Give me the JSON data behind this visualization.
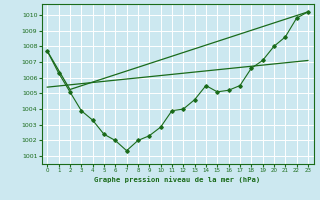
{
  "title": "Graphe pression niveau de la mer (hPa)",
  "bg_color": "#cce8f0",
  "grid_color": "#ffffff",
  "line_color": "#1a6b1a",
  "xlim": [
    -0.5,
    23.5
  ],
  "ylim": [
    1000.5,
    1010.7
  ],
  "yticks": [
    1001,
    1002,
    1003,
    1004,
    1005,
    1006,
    1007,
    1008,
    1009,
    1010
  ],
  "xticks": [
    0,
    1,
    2,
    3,
    4,
    5,
    6,
    7,
    8,
    9,
    10,
    11,
    12,
    13,
    14,
    15,
    16,
    17,
    18,
    19,
    20,
    21,
    22,
    23
  ],
  "line1": {
    "x": [
      0,
      1,
      2,
      3,
      4,
      5,
      6,
      7,
      8,
      9,
      10,
      11,
      12,
      13,
      14,
      15,
      16,
      17,
      18,
      19,
      20,
      21,
      22,
      23
    ],
    "y": [
      1007.7,
      1006.3,
      1005.1,
      1003.9,
      1003.3,
      1002.4,
      1002.0,
      1001.35,
      1002.0,
      1002.3,
      1002.85,
      1003.9,
      1004.0,
      1004.6,
      1005.5,
      1005.1,
      1005.2,
      1005.5,
      1006.6,
      1007.1,
      1008.0,
      1008.6,
      1009.8,
      1010.2
    ]
  },
  "line2": {
    "x": [
      0,
      2,
      23
    ],
    "y": [
      1007.7,
      1005.25,
      1010.2
    ]
  },
  "line3": {
    "x": [
      0,
      23
    ],
    "y": [
      1005.4,
      1007.1
    ]
  }
}
